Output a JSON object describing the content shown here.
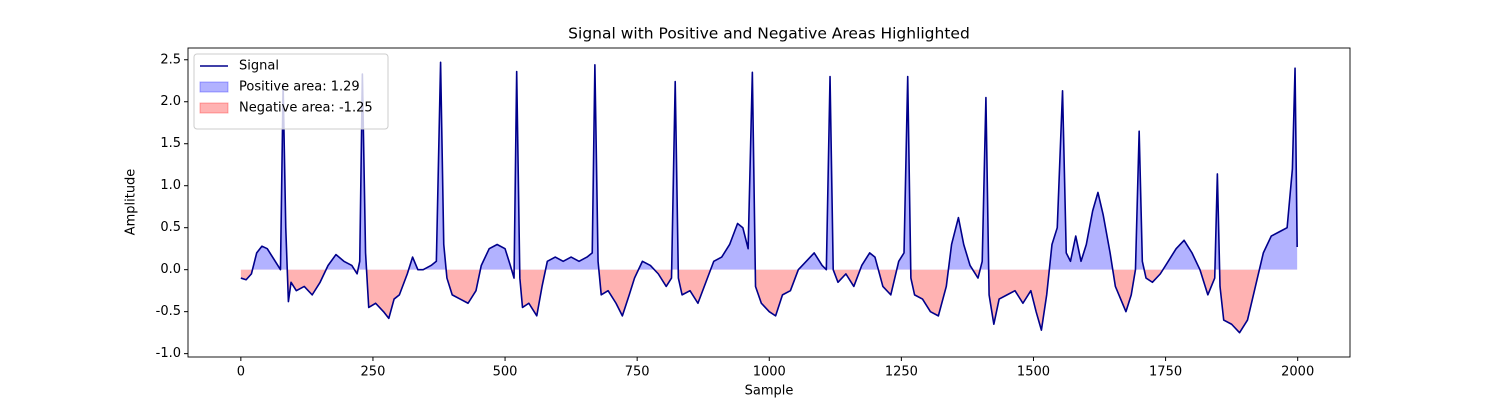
{
  "chart_data": {
    "type": "line",
    "title": "Signal with Positive and Negative Areas Highlighted",
    "x_label": "Sample",
    "y_label": "Amplitude",
    "x": [
      0,
      10,
      20,
      30,
      40,
      50,
      60,
      70,
      75,
      80,
      85,
      90,
      95,
      105,
      120,
      135,
      150,
      165,
      180,
      195,
      210,
      220,
      225,
      230,
      236,
      242,
      255,
      270,
      280,
      290,
      300,
      315,
      325,
      335,
      345,
      360,
      370,
      378,
      384,
      390,
      400,
      415,
      430,
      445,
      455,
      470,
      485,
      500,
      510,
      517,
      522,
      528,
      533,
      545,
      560,
      570,
      580,
      595,
      610,
      625,
      640,
      655,
      665,
      670,
      676,
      682,
      695,
      710,
      722,
      735,
      745,
      760,
      775,
      790,
      805,
      815,
      822,
      828,
      835,
      850,
      865,
      880,
      895,
      910,
      925,
      940,
      950,
      960,
      968,
      974,
      985,
      1000,
      1012,
      1025,
      1040,
      1055,
      1070,
      1085,
      1100,
      1108,
      1115,
      1121,
      1130,
      1145,
      1160,
      1175,
      1190,
      1200,
      1215,
      1230,
      1245,
      1255,
      1262,
      1268,
      1275,
      1290,
      1305,
      1320,
      1335,
      1345,
      1358,
      1368,
      1380,
      1395,
      1403,
      1410,
      1416,
      1425,
      1435,
      1450,
      1465,
      1480,
      1495,
      1505,
      1515,
      1525,
      1535,
      1545,
      1555,
      1562,
      1570,
      1580,
      1590,
      1600,
      1612,
      1622,
      1632,
      1645,
      1655,
      1665,
      1675,
      1685,
      1693,
      1700,
      1706,
      1713,
      1725,
      1740,
      1755,
      1770,
      1785,
      1800,
      1815,
      1830,
      1843,
      1848,
      1853,
      1860,
      1875,
      1890,
      1905,
      1920,
      1935,
      1950,
      1965,
      1980,
      1990,
      1995,
      1999
    ],
    "series": [
      {
        "name": "Signal",
        "color": "#00008b",
        "values": [
          -0.1,
          -0.12,
          -0.05,
          0.2,
          0.28,
          0.25,
          0.15,
          0.05,
          0.0,
          2.2,
          0.5,
          -0.38,
          -0.15,
          -0.25,
          -0.2,
          -0.3,
          -0.15,
          0.05,
          0.18,
          0.1,
          0.05,
          -0.05,
          0.1,
          2.33,
          0.2,
          -0.45,
          -0.4,
          -0.5,
          -0.58,
          -0.35,
          -0.3,
          -0.05,
          0.15,
          0.0,
          0.0,
          0.05,
          0.1,
          2.47,
          0.3,
          -0.1,
          -0.3,
          -0.35,
          -0.4,
          -0.25,
          0.05,
          0.25,
          0.3,
          0.25,
          0.05,
          -0.1,
          2.36,
          -0.1,
          -0.45,
          -0.4,
          -0.55,
          -0.2,
          0.1,
          0.15,
          0.1,
          0.15,
          0.1,
          0.15,
          0.2,
          2.44,
          0.1,
          -0.3,
          -0.25,
          -0.4,
          -0.55,
          -0.3,
          -0.1,
          0.1,
          0.05,
          -0.05,
          -0.2,
          -0.1,
          2.24,
          -0.1,
          -0.3,
          -0.25,
          -0.4,
          -0.15,
          0.1,
          0.15,
          0.3,
          0.55,
          0.5,
          0.25,
          2.35,
          -0.2,
          -0.4,
          -0.5,
          -0.55,
          -0.3,
          -0.25,
          0.0,
          0.1,
          0.2,
          0.05,
          0.0,
          2.3,
          0.0,
          -0.15,
          -0.05,
          -0.2,
          0.05,
          0.2,
          0.15,
          -0.2,
          -0.3,
          0.1,
          0.2,
          2.3,
          -0.1,
          -0.3,
          -0.35,
          -0.5,
          -0.55,
          -0.2,
          0.3,
          0.62,
          0.3,
          0.05,
          -0.1,
          0.1,
          2.05,
          -0.3,
          -0.65,
          -0.35,
          -0.3,
          -0.25,
          -0.4,
          -0.25,
          -0.5,
          -0.72,
          -0.3,
          0.3,
          0.5,
          2.13,
          0.2,
          0.1,
          0.4,
          0.1,
          0.3,
          0.7,
          0.92,
          0.65,
          0.2,
          -0.2,
          -0.35,
          -0.5,
          -0.3,
          0.0,
          1.65,
          0.1,
          -0.1,
          -0.15,
          -0.05,
          0.1,
          0.25,
          0.35,
          0.2,
          0.0,
          -0.3,
          -0.1,
          1.14,
          -0.2,
          -0.6,
          -0.65,
          -0.75,
          -0.6,
          -0.2,
          0.2,
          0.4,
          0.45,
          0.5,
          1.2,
          2.4,
          0.27
        ]
      }
    ],
    "fills": [
      {
        "name": "Positive area: 1.29",
        "color": "#0000ff",
        "alpha": 0.3,
        "where": "positive"
      },
      {
        "name": "Negative area: -1.25",
        "color": "#ff0000",
        "alpha": 0.3,
        "where": "negative"
      }
    ],
    "xlim": [
      -100,
      2099
    ],
    "ylim": [
      -1.04,
      2.64
    ],
    "xticks": [
      0,
      250,
      500,
      750,
      1000,
      1250,
      1500,
      1750,
      2000
    ],
    "yticks": [
      {
        "value": -1.0,
        "label": "-1.0"
      },
      -0.5,
      {
        "value": 0.0,
        "label": "0.0"
      },
      0.5,
      {
        "value": 1.0,
        "label": "1.0"
      },
      1.5,
      {
        "value": 2.0,
        "label": "2.0"
      },
      2.5
    ],
    "legend": "upper left"
  }
}
